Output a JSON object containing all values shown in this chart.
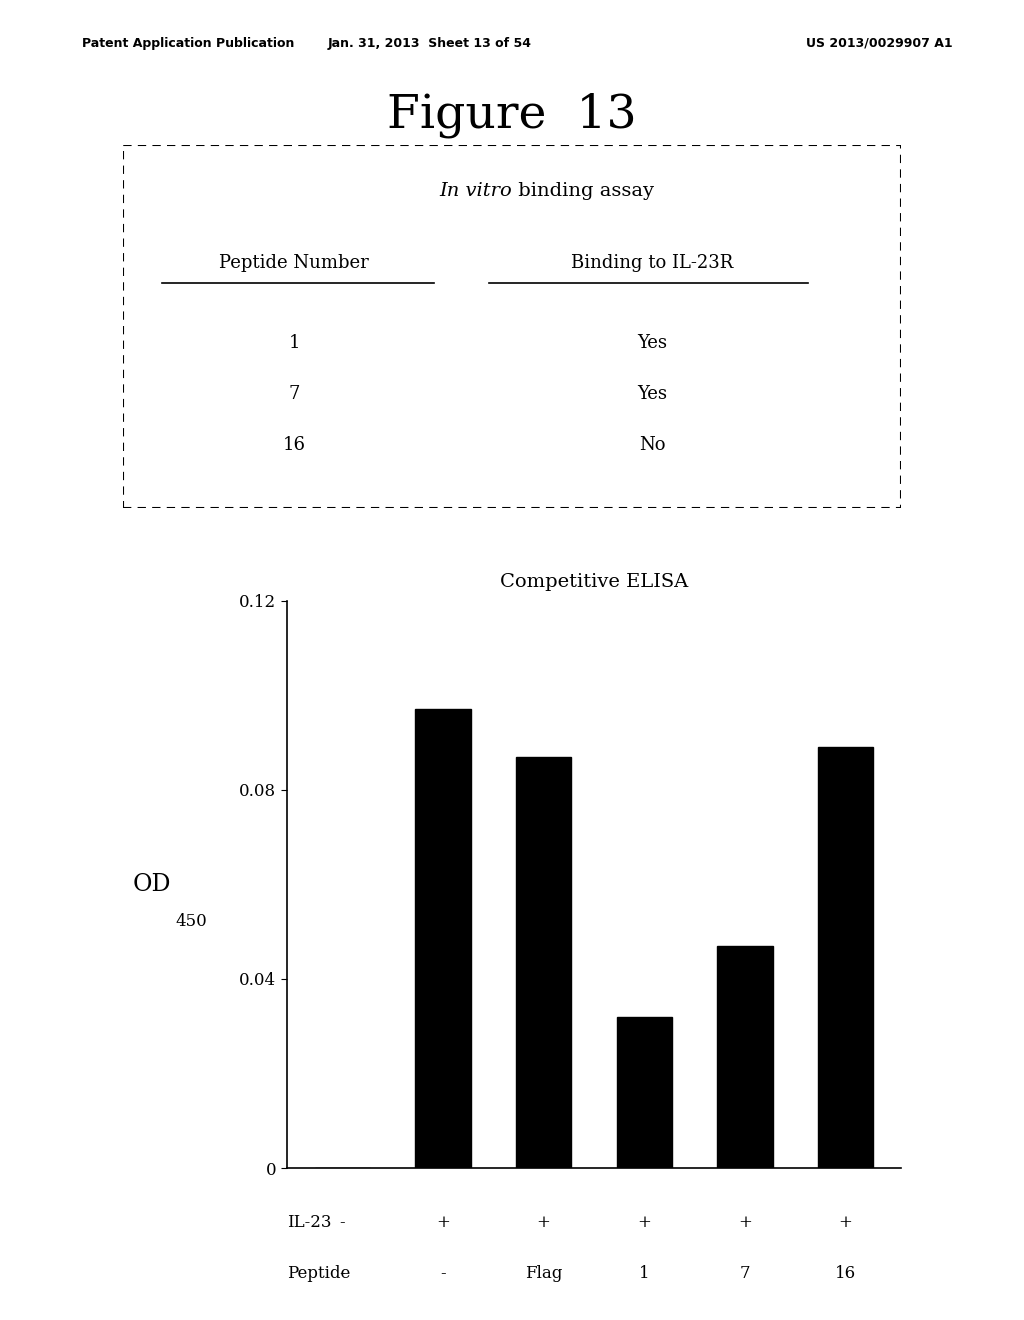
{
  "fig_title": "Figure  13",
  "header_left": "Patent Application Publication",
  "header_center": "Jan. 31, 2013  Sheet 13 of 54",
  "header_right": "US 2013/0029907 A1",
  "table_title_italic": "In vitro",
  "table_title_rest": " binding assay",
  "col1_header": "Peptide Number",
  "col2_header": "Binding to IL-23R",
  "table_rows": [
    [
      "1",
      "Yes"
    ],
    [
      "7",
      "Yes"
    ],
    [
      "16",
      "No"
    ]
  ],
  "chart_title": "Competitive ELISA",
  "bar_values": [
    0.0,
    0.097,
    0.087,
    0.032,
    0.047,
    0.089
  ],
  "bar_color": "#000000",
  "ylim": [
    0,
    0.12
  ],
  "yticks": [
    0,
    0.04,
    0.08,
    0.12
  ],
  "ytick_labels": [
    "0",
    "0.04",
    "0.08",
    "0.12"
  ],
  "il23_labels": [
    "-",
    "+",
    "+",
    "+",
    "+",
    "+"
  ],
  "peptide_labels": [
    "-",
    "-",
    "Flag",
    "1",
    "7",
    "16"
  ],
  "ylabel_main": "OD",
  "ylabel_sub": "450",
  "background_color": "#ffffff"
}
